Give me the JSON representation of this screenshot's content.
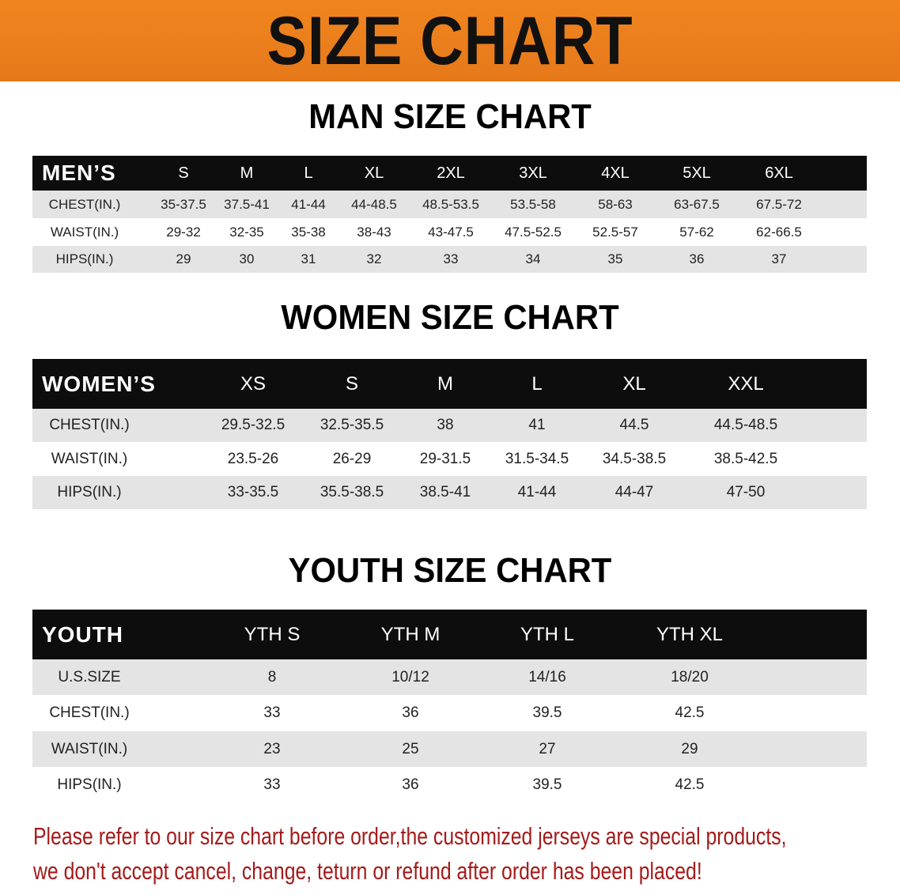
{
  "banner": {
    "title": "SIZE CHART",
    "color": "#ec7f1d"
  },
  "men": {
    "title": "MAN SIZE CHART",
    "header_label": "MEN’S",
    "sizes": [
      "S",
      "M",
      "L",
      "XL",
      "2XL",
      "3XL",
      "4XL",
      "5XL",
      "6XL"
    ],
    "rows": [
      {
        "label": "CHEST(IN.)",
        "values": [
          "35-37.5",
          "37.5-41",
          "41-44",
          "44-48.5",
          "48.5-53.5",
          "53.5-58",
          "58-63",
          "63-67.5",
          "67.5-72"
        ]
      },
      {
        "label": "WAIST(IN.)",
        "values": [
          "29-32",
          "32-35",
          "35-38",
          "38-43",
          "43-47.5",
          "47.5-52.5",
          "52.5-57",
          "57-62",
          "62-66.5"
        ]
      },
      {
        "label": "HIPS(IN.)",
        "values": [
          "29",
          "30",
          "31",
          "32",
          "33",
          "34",
          "35",
          "36",
          "37"
        ]
      }
    ]
  },
  "women": {
    "title": "WOMEN SIZE CHART",
    "header_label": "WOMEN’S",
    "sizes": [
      "XS",
      "S",
      "M",
      "L",
      "XL",
      "XXL"
    ],
    "rows": [
      {
        "label": "CHEST(IN.)",
        "values": [
          "29.5-32.5",
          "32.5-35.5",
          "38",
          "41",
          "44.5",
          "44.5-48.5"
        ]
      },
      {
        "label": "WAIST(IN.)",
        "values": [
          "23.5-26",
          "26-29",
          "29-31.5",
          "31.5-34.5",
          "34.5-38.5",
          "38.5-42.5"
        ]
      },
      {
        "label": "HIPS(IN.)",
        "values": [
          "33-35.5",
          "35.5-38.5",
          "38.5-41",
          "41-44",
          "44-47",
          "47-50"
        ]
      }
    ]
  },
  "youth": {
    "title": "YOUTH SIZE CHART",
    "header_label": "YOUTH",
    "sizes": [
      "YTH S",
      "YTH M",
      "YTH L",
      "YTH XL"
    ],
    "rows": [
      {
        "label": "U.S.SIZE",
        "values": [
          "8",
          "10/12",
          "14/16",
          "18/20"
        ]
      },
      {
        "label": "CHEST(IN.)",
        "values": [
          "33",
          "36",
          "39.5",
          "42.5"
        ]
      },
      {
        "label": "WAIST(IN.)",
        "values": [
          "23",
          "25",
          "27",
          "29"
        ]
      },
      {
        "label": "HIPS(IN.)",
        "values": [
          "33",
          "36",
          "39.5",
          "42.5"
        ]
      }
    ]
  },
  "notice": {
    "line1": "Please refer to our size chart before order,the customized jerseys are special products,",
    "line2": "we don't accept cancel, change, teturn or refund after order has been placed!",
    "color": "#a51a1a"
  }
}
